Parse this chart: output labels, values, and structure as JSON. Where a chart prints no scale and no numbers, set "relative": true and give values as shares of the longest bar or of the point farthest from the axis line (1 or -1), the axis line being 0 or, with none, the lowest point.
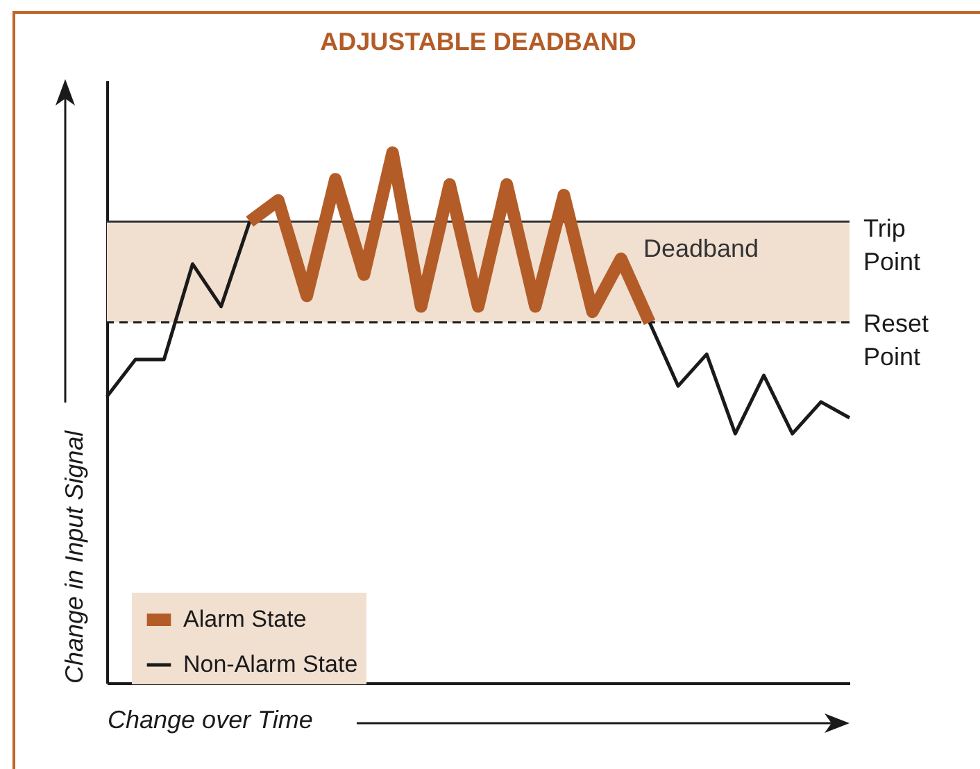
{
  "chart_data": {
    "type": "line",
    "title": "ADJUSTABLE DEADBAND",
    "xlabel": "Change over Time",
    "ylabel": "Change in Input Signal",
    "relative": true,
    "legend": "bottom left",
    "categories": [
      null,
      null,
      null,
      null,
      null,
      null,
      null,
      null,
      null,
      null,
      null,
      null,
      null,
      null,
      null,
      null,
      null,
      null,
      null,
      null,
      null,
      null,
      null,
      null,
      null,
      null,
      null
    ],
    "series": [
      {
        "name": "Alarm State",
        "color": "#b35c27",
        "values": [
          null,
          null,
          null,
          null,
          null,
          0.87,
          0.91,
          0.73,
          0.95,
          0.77,
          1.0,
          0.71,
          0.94,
          0.71,
          0.94,
          0.71,
          0.92,
          0.7,
          0.8,
          0.68,
          null,
          null,
          null,
          null,
          null,
          null,
          null
        ]
      },
      {
        "name": "Non-Alarm State",
        "color": "#1a1a1a",
        "values": [
          0.54,
          0.61,
          0.61,
          0.79,
          0.71,
          0.87,
          null,
          null,
          null,
          null,
          null,
          null,
          null,
          null,
          null,
          null,
          null,
          null,
          null,
          0.68,
          0.56,
          0.62,
          0.47,
          0.58,
          0.47,
          0.53,
          0.5
        ]
      }
    ],
    "ref_lines": [
      {
        "axis": "y",
        "value": 0.87,
        "label": "Trip Point",
        "color": "#333333",
        "line_style": "solid"
      },
      {
        "axis": "y",
        "value": 0.68,
        "label": "Reset Point",
        "color": "#1a1a1a",
        "line_style": "dashed"
      }
    ],
    "bands": [
      {
        "axis": "y",
        "from": 0.68,
        "to": 0.87,
        "label": "Deadband",
        "color": "#f1dfd0"
      }
    ]
  }
}
